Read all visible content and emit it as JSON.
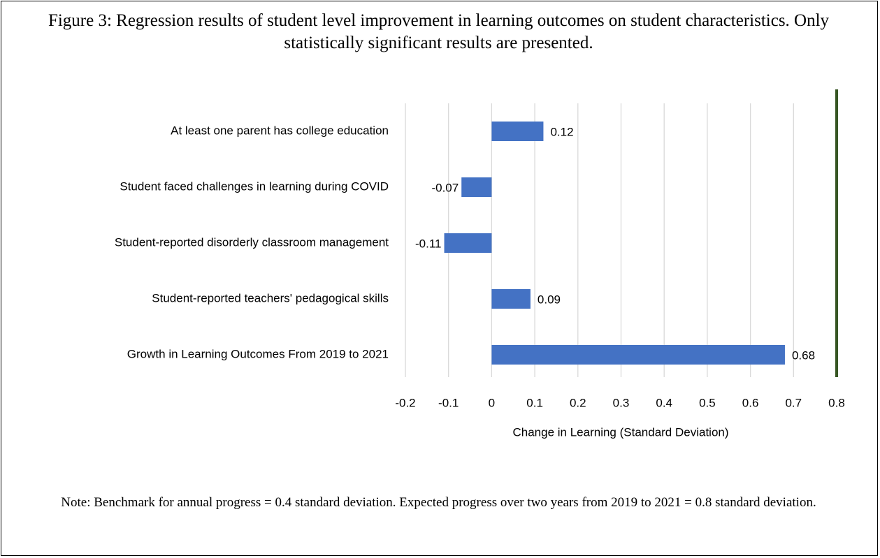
{
  "chart_data": {
    "type": "bar",
    "orientation": "horizontal",
    "title": "Figure 3: Regression results of student level improvement in learning outcomes on student characteristics. Only statistically significant results are presented.",
    "categories": [
      "At least one parent has college education",
      "Student faced challenges in learning during COVID",
      "Student-reported disorderly classroom management",
      "Student-reported teachers' pedagogical skills",
      "Growth in Learning Outcomes From 2019 to 2021"
    ],
    "values": [
      0.12,
      -0.07,
      -0.11,
      0.09,
      0.68
    ],
    "color": "#4472c4",
    "xlabel": "Change in Learning (Standard Deviation)",
    "xlim": [
      -0.2,
      0.8
    ],
    "xticks": [
      -0.2,
      -0.1,
      0,
      0.1,
      0.2,
      0.3,
      0.4,
      0.5,
      0.6,
      0.7,
      0.8
    ],
    "grid": true,
    "benchmark_line": {
      "value": 0.8,
      "color": "#375623"
    },
    "note": "Note: Benchmark for annual progress = 0.4 standard deviation. Expected progress over two years from 2019 to 2021 = 0.8 standard deviation."
  }
}
